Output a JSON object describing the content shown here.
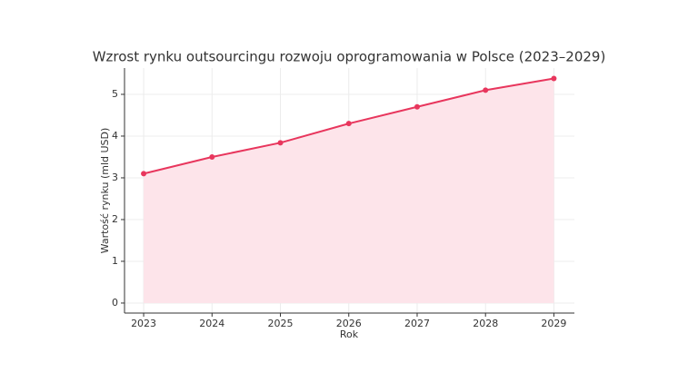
{
  "chart_data": {
    "type": "area-line",
    "title": "Wzrost rynku outsourcingu rozwoju oprogramowania w Polsce (2023–2029)",
    "x_label": "Rok",
    "y_label": "Wartość rynku (mld USD)",
    "x": [
      2023,
      2024,
      2025,
      2026,
      2027,
      2028,
      2029
    ],
    "values": [
      3.1,
      3.5,
      3.84,
      4.3,
      4.7,
      5.1,
      5.38
    ],
    "color": "#e8365d",
    "fill_color": "#fde4ea",
    "xlim": [
      2022.72,
      2029.3
    ],
    "xticks": [
      2023,
      2024,
      2025,
      2026,
      2027,
      2028,
      2029
    ],
    "ylim": [
      -0.24,
      5.63
    ],
    "yticks": [
      0,
      1,
      2,
      3,
      4,
      5
    ],
    "grid": true
  }
}
